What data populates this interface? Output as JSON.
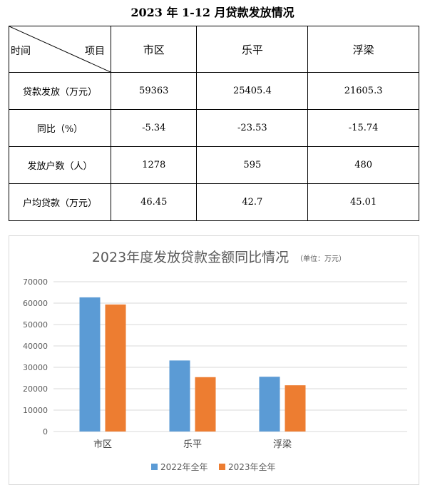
{
  "table": {
    "title": "2023 年 1-12 月贷款发放情况",
    "corner_left": "时间",
    "corner_right": "项目",
    "columns": [
      "市区",
      "乐平",
      "浮梁"
    ],
    "rows": [
      {
        "label": "贷款发放（万元）",
        "values": [
          "59363",
          "25405.4",
          "21605.3"
        ]
      },
      {
        "label": "同比（%）",
        "values": [
          "-5.34",
          "-23.53",
          "-15.74"
        ]
      },
      {
        "label": "发放户数（人）",
        "values": [
          "1278",
          "595",
          "480"
        ]
      },
      {
        "label": "户均贷款（万元）",
        "values": [
          "46.45",
          "42.7",
          "45.01"
        ]
      }
    ]
  },
  "chart_data": {
    "type": "bar",
    "title": "2023年度发放贷款金额同比情况",
    "subtitle": "（单位：万元）",
    "categories": [
      "市区",
      "乐平",
      "浮梁"
    ],
    "series": [
      {
        "name": "2022年全年",
        "color": "#5b9bd5",
        "values": [
          62700,
          33200,
          25600
        ]
      },
      {
        "name": "2023年全年",
        "color": "#ed7d31",
        "values": [
          59363,
          25405.4,
          21605.3
        ]
      }
    ],
    "ylim": [
      0,
      70000
    ],
    "yticks": [
      "0",
      "10000",
      "20000",
      "30000",
      "40000",
      "50000",
      "60000",
      "70000"
    ],
    "grid": true,
    "legend": "bottom"
  }
}
